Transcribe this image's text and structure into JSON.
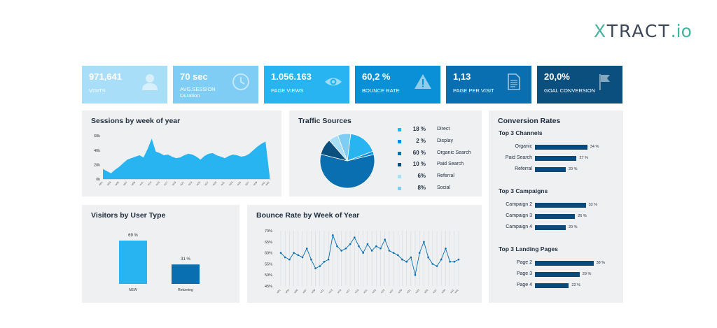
{
  "brand": {
    "logo_x": "X",
    "logo_tract": "TRACT",
    "logo_dot_io": ".io"
  },
  "kpis": [
    {
      "value": "971,641",
      "label": "VISITS",
      "label2": "",
      "color": "#a9def9",
      "icon": "user-icon"
    },
    {
      "value": "70 sec",
      "label": "AVG.SESSION",
      "label2": "Duration",
      "color": "#7fcdf5",
      "icon": "clock-icon"
    },
    {
      "value": "1.056.163",
      "label": "PAGE VIEWS",
      "label2": "",
      "color": "#28b4f0",
      "icon": "eye-icon"
    },
    {
      "value": "60,2 %",
      "label": "BOUNCE RATE",
      "label2": "",
      "color": "#0a90d6",
      "icon": "warning-icon"
    },
    {
      "value": "1,13",
      "label": "PAGE PER VISIT",
      "label2": "",
      "color": "#0a6fb0",
      "icon": "document-icon"
    },
    {
      "value": "20,0%",
      "label": "GOAL CONVERSION",
      "label2": "",
      "color": "#0b4f7e",
      "icon": "flag-icon"
    }
  ],
  "sessions": {
    "title": "Sessions by week of year",
    "chart_data": {
      "type": "area",
      "y_ticks": [
        "60k",
        "40k",
        "20k",
        "0k"
      ],
      "ylim": [
        0,
        65000
      ],
      "x": [
        "w01",
        "w02",
        "w03",
        "w04",
        "w05",
        "w06",
        "w07",
        "w08",
        "w09",
        "w10",
        "w11",
        "w12",
        "w13",
        "w14",
        "w15",
        "w16",
        "w17",
        "w18",
        "w19",
        "w20",
        "w21",
        "w22",
        "w23",
        "w24",
        "w25",
        "w26",
        "w27",
        "w28",
        "w29",
        "w30",
        "w31",
        "w32",
        "w33",
        "w34",
        "w35",
        "w36",
        "w37",
        "w38",
        "w39",
        "w40",
        "w41",
        "w42"
      ],
      "values": [
        14000,
        11000,
        8000,
        13000,
        17000,
        22000,
        27000,
        29000,
        31000,
        33000,
        30000,
        42000,
        56000,
        38000,
        36000,
        33000,
        34000,
        31000,
        29000,
        30000,
        33000,
        35000,
        34000,
        31000,
        27000,
        32000,
        35000,
        36000,
        33000,
        31000,
        29000,
        32000,
        34000,
        33000,
        31000,
        32000,
        35000,
        40000,
        45000,
        49000,
        52000,
        5000
      ],
      "color": "#28b4f0"
    }
  },
  "traffic": {
    "title": "Traffic Sources",
    "chart_data": {
      "type": "pie",
      "items": [
        {
          "pct": "18 %",
          "value": 18,
          "name": "Direct",
          "color": "#28b4f0"
        },
        {
          "pct": "2 %",
          "value": 2,
          "name": "Display",
          "color": "#0a90d6"
        },
        {
          "pct": "60 %",
          "value": 60,
          "name": "Organic Search",
          "color": "#0a6fb0"
        },
        {
          "pct": "10 %",
          "value": 10,
          "name": "Paid Search",
          "color": "#0b4f7e"
        },
        {
          "pct": "6%",
          "value": 6,
          "name": "Referral",
          "color": "#a9def9"
        },
        {
          "pct": "8%",
          "value": 8,
          "name": "Social",
          "color": "#7fcdf5"
        }
      ]
    }
  },
  "conversion": {
    "title": "Conversion Rates",
    "groups": [
      {
        "title": "Top 3 Channels",
        "rows": [
          {
            "label": "Organic",
            "value": 34,
            "text": "34 %"
          },
          {
            "label": "Paid Search",
            "value": 27,
            "text": "27 %"
          },
          {
            "label": "Referral",
            "value": 20,
            "text": "20 %"
          }
        ]
      },
      {
        "title": "Top 3 Campaigns",
        "rows": [
          {
            "label": "Campaign 2",
            "value": 33,
            "text": "33 %"
          },
          {
            "label": "Campaign 3",
            "value": 26,
            "text": "26 %"
          },
          {
            "label": "Campaign 4",
            "value": 20,
            "text": "20 %"
          }
        ]
      },
      {
        "title": "Top 3 Landing Pages",
        "rows": [
          {
            "label": "Page 2",
            "value": 38,
            "text": "38 %"
          },
          {
            "label": "Page 3",
            "value": 29,
            "text": "29 %"
          },
          {
            "label": "Page 4",
            "value": 22,
            "text": "22 %"
          }
        ]
      }
    ],
    "bar_color": "#0a4a7a"
  },
  "visitors": {
    "title": "Visitors by User Type",
    "chart_data": {
      "type": "bar",
      "categories": [
        "NEW",
        "Returning"
      ],
      "values": [
        69,
        31
      ],
      "labels": [
        "69 %",
        "31 %"
      ],
      "colors": [
        "#28b4f0",
        "#0a6fb0"
      ]
    }
  },
  "bounce": {
    "title": "Bounce Rate by Week of Year",
    "chart_data": {
      "type": "line",
      "y_ticks": [
        "70%",
        "65%",
        "60%",
        "55%",
        "50%",
        "45%"
      ],
      "ylim": [
        45,
        70
      ],
      "x": [
        "w01",
        "w02",
        "w03",
        "w04",
        "w05",
        "w06",
        "w07",
        "w08",
        "w09",
        "w10",
        "w11",
        "w12",
        "w13",
        "w14",
        "w15",
        "w16",
        "w17",
        "w18",
        "w19",
        "w20",
        "w21",
        "w22",
        "w23",
        "w24",
        "w25",
        "w26",
        "w27",
        "w28",
        "w29",
        "w30",
        "w31",
        "w32",
        "w33",
        "w34",
        "w35",
        "w36",
        "w37",
        "w38",
        "w39",
        "w40",
        "w41",
        "w42"
      ],
      "values": [
        60,
        58,
        57,
        60,
        59,
        58,
        62,
        57,
        53,
        54,
        56,
        57,
        68,
        63,
        61,
        62,
        64,
        67,
        63,
        60,
        64,
        61,
        63,
        62,
        66,
        61,
        60,
        59,
        57,
        56,
        58,
        50,
        60,
        65,
        58,
        55,
        54,
        57,
        62,
        56,
        56,
        57
      ],
      "color": "#0a6fb0"
    }
  }
}
